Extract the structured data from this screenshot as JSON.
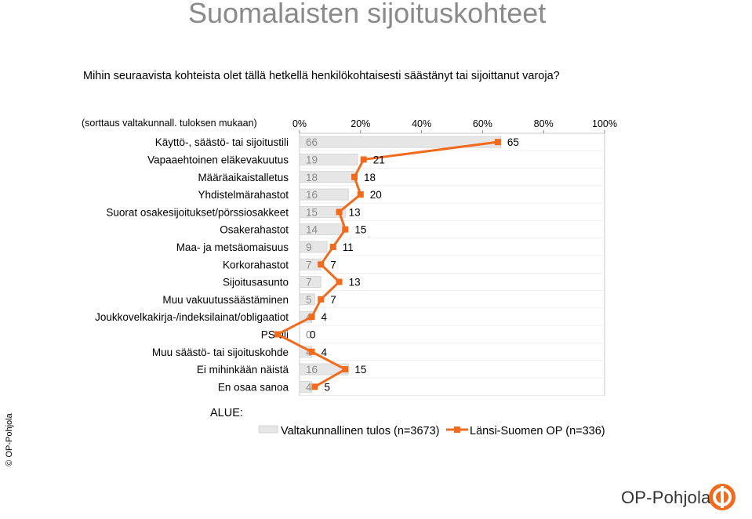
{
  "page": {
    "title": "Suomalaisten sijoituskohteet",
    "question": "Mihin seuraavista kohteista olet tällä hetkellä henkilökohtaisesti säästänyt tai sijoittanut varoja?",
    "sort_note": "(sorttaus valtakunnall. tuloksen mukaan)",
    "alue_label": "ALUE:",
    "copyright": "© OP-Pohjola",
    "brand": "OP-Pohjola"
  },
  "colors": {
    "bar_fill": "#e6e6e6",
    "line": "#f26b1d",
    "grid": "#c8c8c8",
    "national_label": "#8c8c8c",
    "regional_label": "#000000"
  },
  "chart_data": {
    "type": "bar",
    "orientation": "horizontal",
    "xlim": [
      0,
      100
    ],
    "x_ticks": [
      "0%",
      "20%",
      "40%",
      "60%",
      "80%",
      "100%"
    ],
    "legend_position": "bottom",
    "categories": [
      "Käyttö-, säästö- tai sijoitustili",
      "Vapaaehtoinen eläkevakuutus",
      "Määräaikaistalletus",
      "Yhdistelmärahastot",
      "Suorat osakesijoitukset/pörssiosakkeet",
      "Osakerahastot",
      "Maa- ja metsäomaisuus",
      "Korkorahastot",
      "Sijoitusasunto",
      "Muu vakuutussäästäminen",
      "Joukkovelkakirja-/indeksilainat/obligaatiot",
      "PS-tili",
      "Muu säästö- tai sijoituskohde",
      "Ei mihinkään näistä",
      "En osaa sanoa"
    ],
    "series": [
      {
        "name": "Valtakunnallinen tulos (n=3673)",
        "kind": "bar",
        "values": [
          66,
          19,
          18,
          16,
          15,
          14,
          9,
          7,
          7,
          5,
          4,
          0,
          4,
          16,
          4
        ],
        "labels": [
          "66",
          "19",
          "18",
          "16",
          "15",
          "14",
          "9",
          "7",
          "7",
          "5",
          "4",
          "0",
          "4",
          "16",
          "4"
        ]
      },
      {
        "name": "Länsi-Suomen OP (n=336)",
        "kind": "line",
        "values": [
          65,
          21,
          18,
          20,
          13,
          15,
          11,
          7,
          13,
          7,
          4,
          0,
          4,
          15,
          5
        ],
        "labels": [
          "65",
          "21",
          "18",
          "20",
          "13",
          "15",
          "11",
          "7",
          "13",
          "7",
          "4",
          "0",
          "4",
          "15",
          "5"
        ]
      }
    ]
  }
}
